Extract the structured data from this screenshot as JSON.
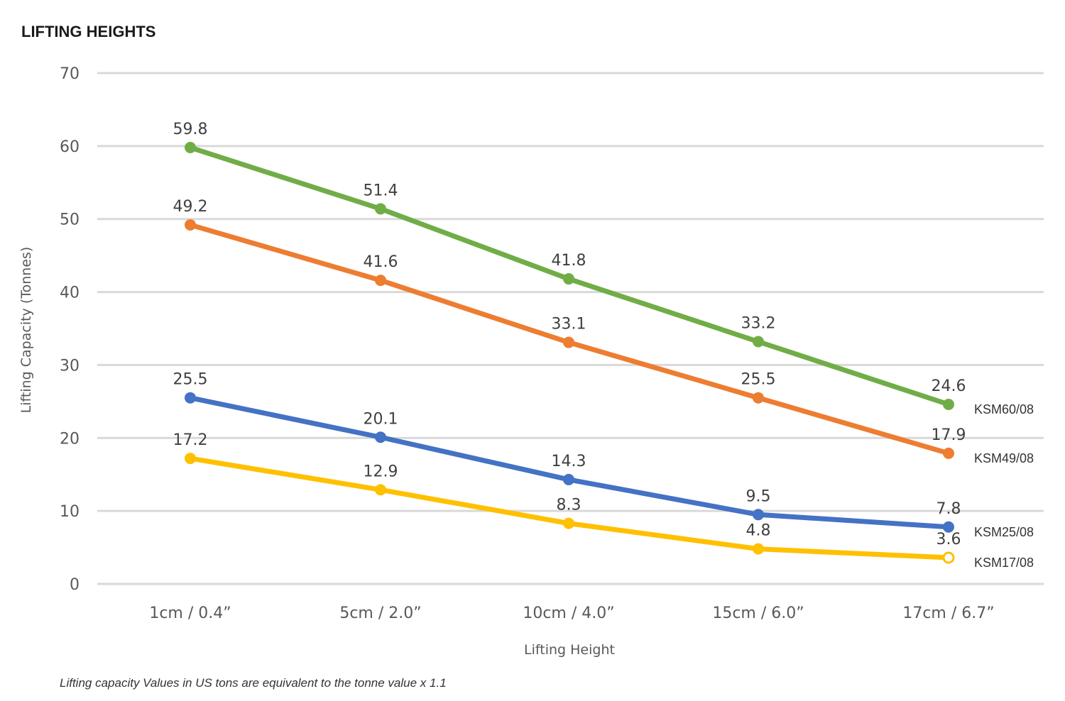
{
  "chart_data": {
    "type": "line",
    "title": "LIFTING HEIGHTS",
    "xlabel": "Lifting Height",
    "ylabel": "Lifting Capacity (Tonnes)",
    "categories": [
      "1cm / 0.4”",
      "5cm / 2.0”",
      "10cm / 4.0”",
      "15cm / 6.0”",
      "17cm  / 6.7”"
    ],
    "ylim": [
      0,
      70
    ],
    "yticks": [
      0,
      10,
      20,
      30,
      40,
      50,
      60,
      70
    ],
    "grid": true,
    "series_label_position": "right end of each line",
    "series": [
      {
        "name": "KSM60/08",
        "color": "#70ad47",
        "values": [
          59.8,
          51.4,
          41.8,
          33.2,
          24.6
        ]
      },
      {
        "name": "KSM49/08",
        "color": "#ed7d31",
        "values": [
          49.2,
          41.6,
          33.1,
          25.5,
          17.9
        ]
      },
      {
        "name": "KSM25/08",
        "color": "#4472c4",
        "values": [
          25.5,
          20.1,
          14.3,
          9.5,
          7.8
        ]
      },
      {
        "name": "KSM17/08",
        "color": "#ffc000",
        "values": [
          17.2,
          12.9,
          8.3,
          4.8,
          3.6
        ]
      }
    ],
    "footnote": "Lifting capacity Values in US tons are equivalent to the tonne value x 1.1"
  }
}
